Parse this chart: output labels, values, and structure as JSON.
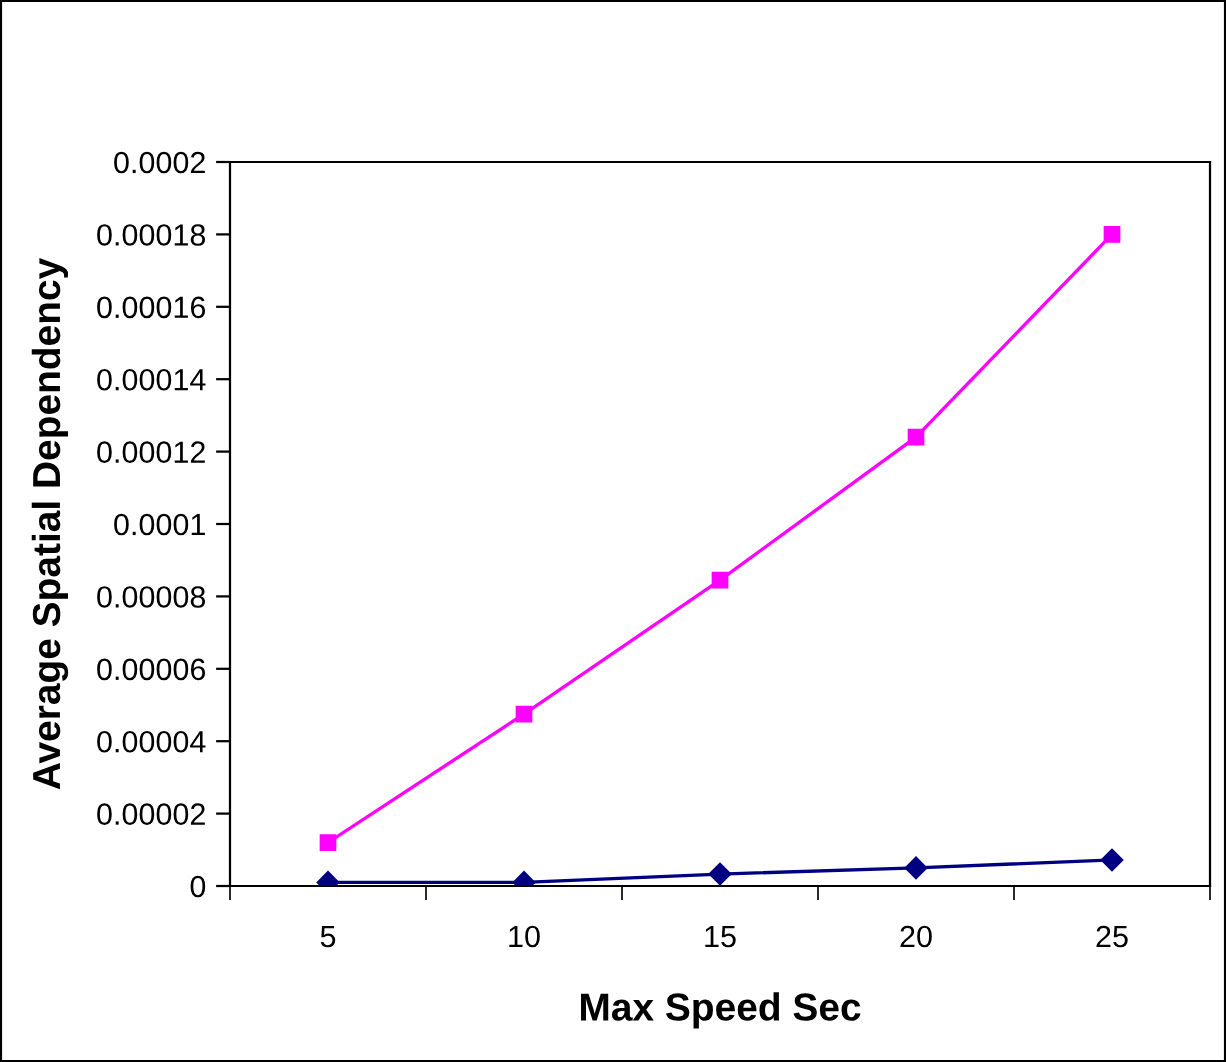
{
  "chart_data": {
    "type": "line",
    "xlabel": "Max Speed Sec",
    "ylabel": "Average Spatial Dependency",
    "categories": [
      "5",
      "10",
      "15",
      "20",
      "25"
    ],
    "series": [
      {
        "color": "#000080",
        "marker": "diamond",
        "values": [
          1e-06,
          1e-06,
          3.3e-06,
          5e-06,
          7.2e-06
        ]
      },
      {
        "color": "#ff00ff",
        "marker": "square",
        "values": [
          1.2e-05,
          4.75e-05,
          8.45e-05,
          0.000124,
          0.00018
        ]
      }
    ],
    "ylim": [
      0,
      0.0002
    ],
    "yticks": [
      0,
      {
        "value": 2e-05,
        "label": "0.00002"
      },
      {
        "value": 4e-05,
        "label": "0.00004"
      },
      {
        "value": 6e-05,
        "label": "0.00006"
      },
      {
        "value": 8e-05,
        "label": "0.00008"
      },
      {
        "value": 0.0001,
        "label": "0.0001"
      },
      {
        "value": 0.00012,
        "label": "0.00012"
      },
      {
        "value": 0.00014,
        "label": "0.00014"
      },
      {
        "value": 0.00016,
        "label": "0.00016"
      },
      {
        "value": 0.00018,
        "label": "0.00018"
      },
      {
        "value": 0.0002,
        "label": "0.0002"
      }
    ],
    "grid": false,
    "legend": false,
    "line_style": "solid"
  }
}
